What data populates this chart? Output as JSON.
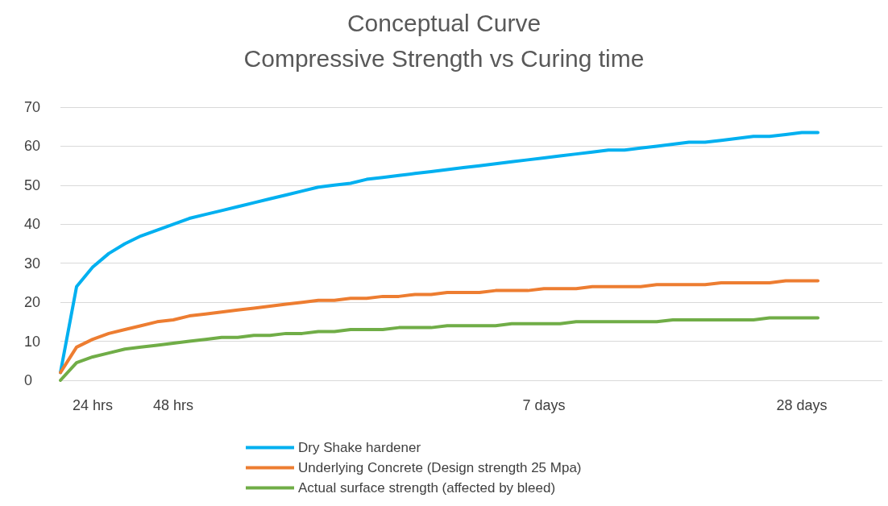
{
  "chart_data": {
    "type": "line",
    "title": "Conceptual Curve",
    "subtitle": "Compressive Strength vs Curing time",
    "categories": [
      null,
      null,
      "24 hrs",
      null,
      null,
      null,
      null,
      "48 hrs",
      null,
      null,
      null,
      null,
      null,
      null,
      null,
      null,
      null,
      null,
      null,
      null,
      null,
      null,
      null,
      null,
      null,
      null,
      null,
      null,
      null,
      null,
      "7 days",
      null,
      null,
      null,
      null,
      null,
      null,
      null,
      null,
      null,
      null,
      null,
      null,
      null,
      null,
      null,
      "28 days",
      null,
      null,
      null,
      null,
      null
    ],
    "series": [
      {
        "name": "Dry Shake hardener",
        "color": "#00b0f0",
        "values": [
          2,
          24,
          29,
          32.5,
          35,
          37,
          38.5,
          40,
          41.5,
          42.5,
          43.5,
          44.5,
          45.5,
          46.5,
          47.5,
          48.5,
          49.5,
          50,
          50.5,
          51.5,
          52,
          52.5,
          53,
          53.5,
          54,
          54.5,
          55,
          55.5,
          56,
          56.5,
          57,
          57.5,
          58,
          58.5,
          59,
          59,
          59.5,
          60,
          60.5,
          61,
          61,
          61.5,
          62,
          62.5,
          62.5,
          63,
          63.5,
          63.5,
          null,
          null,
          null,
          null
        ]
      },
      {
        "name": "Underlying Concrete (Design strength 25 Mpa)",
        "color": "#ed7d31",
        "values": [
          2,
          8.5,
          10.5,
          12,
          13,
          14,
          15,
          15.5,
          16.5,
          17,
          17.5,
          18,
          18.5,
          19,
          19.5,
          20,
          20.5,
          20.5,
          21,
          21,
          21.5,
          21.5,
          22,
          22,
          22.5,
          22.5,
          22.5,
          23,
          23,
          23,
          23.5,
          23.5,
          23.5,
          24,
          24,
          24,
          24,
          24.5,
          24.5,
          24.5,
          24.5,
          25,
          25,
          25,
          25,
          25.5,
          25.5,
          25.5,
          null,
          null,
          null,
          null
        ]
      },
      {
        "name": "Actual surface strength (affected by bleed)",
        "color": "#70ad47",
        "values": [
          0,
          4.5,
          6,
          7,
          8,
          8.5,
          9,
          9.5,
          10,
          10.5,
          11,
          11,
          11.5,
          11.5,
          12,
          12,
          12.5,
          12.5,
          13,
          13,
          13,
          13.5,
          13.5,
          13.5,
          14,
          14,
          14,
          14,
          14.5,
          14.5,
          14.5,
          14.5,
          15,
          15,
          15,
          15,
          15,
          15,
          15.5,
          15.5,
          15.5,
          15.5,
          15.5,
          15.5,
          16,
          16,
          16,
          16,
          null,
          null,
          null,
          null
        ]
      }
    ],
    "ylim": [
      0,
      70
    ],
    "yticks": [
      0,
      10,
      20,
      30,
      40,
      50,
      60,
      70
    ],
    "grid": "y",
    "legend": "bottom",
    "marker": "none",
    "line_style": "solid"
  }
}
